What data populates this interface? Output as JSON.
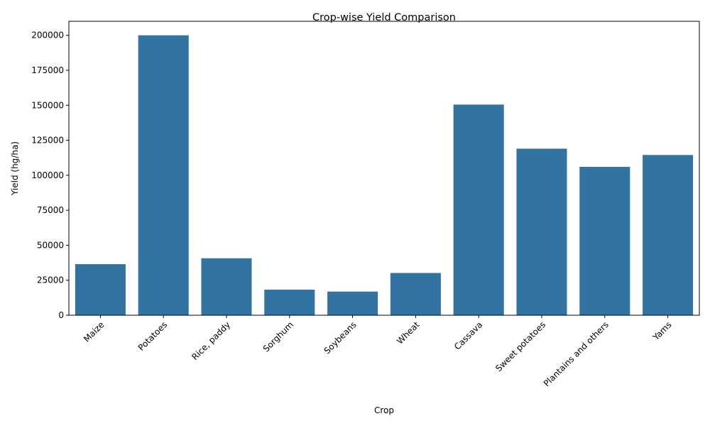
{
  "chart_data": {
    "type": "bar",
    "title": "Crop-wise Yield Comparison",
    "xlabel": "Crop",
    "ylabel": "Yield (hg/ha)",
    "categories": [
      "Maize",
      "Potatoes",
      "Rice, paddy",
      "Sorghum",
      "Soybeans",
      "Wheat",
      "Cassava",
      "Sweet potatoes",
      "Plantains and others",
      "Yams"
    ],
    "values": [
      36500,
      200000,
      40700,
      18300,
      16900,
      30200,
      150500,
      119000,
      106000,
      114500
    ],
    "ylim": [
      0,
      210000
    ],
    "yticks": [
      0,
      25000,
      50000,
      75000,
      100000,
      125000,
      150000,
      175000,
      200000
    ],
    "ytick_labels": [
      "0",
      "25000",
      "50000",
      "75000",
      "100000",
      "125000",
      "150000",
      "175000",
      "200000"
    ],
    "grid": false,
    "bar_color": "#3274a1",
    "x_tick_rotation_deg": 45
  }
}
